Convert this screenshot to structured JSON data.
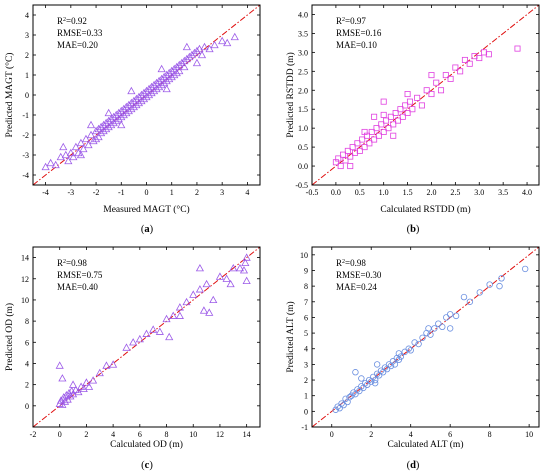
{
  "chart_data": [
    {
      "type": "scatter",
      "panel_label": "(a)",
      "xlabel": "Measured MAGT (°C)",
      "ylabel": "Predicted MAGT (°C)",
      "xlim": [
        -4.5,
        4.5
      ],
      "ylim": [
        -4.5,
        4.5
      ],
      "xticks": [
        -4,
        -3,
        -2,
        -1,
        0,
        1,
        2,
        3,
        4
      ],
      "yticks": [
        -4,
        -3,
        -2,
        -1,
        0,
        1,
        2,
        3,
        4
      ],
      "marker": "triangle",
      "color": "#9b59e8",
      "stats": [
        {
          "prefix": "R",
          "sup": "2",
          "text": "=0.92"
        },
        {
          "prefix": "",
          "sup": "",
          "text": "RMSE=0.33"
        },
        {
          "prefix": "",
          "sup": "",
          "text": "MAE=0.20"
        }
      ],
      "points": [
        [
          -4.0,
          -3.6
        ],
        [
          -3.8,
          -3.4
        ],
        [
          -3.6,
          -3.5
        ],
        [
          -3.4,
          -3.1
        ],
        [
          -3.2,
          -3.0
        ],
        [
          -3.1,
          -3.3
        ],
        [
          -3.0,
          -2.9
        ],
        [
          -2.9,
          -3.1
        ],
        [
          -2.8,
          -2.6
        ],
        [
          -2.7,
          -2.9
        ],
        [
          -2.6,
          -2.4
        ],
        [
          -2.5,
          -2.7
        ],
        [
          -2.4,
          -2.2
        ],
        [
          -2.3,
          -2.5
        ],
        [
          -2.2,
          -2.0
        ],
        [
          -2.1,
          -2.3
        ],
        [
          -2.0,
          -1.8
        ],
        [
          -2.0,
          -2.2
        ],
        [
          -1.9,
          -1.7
        ],
        [
          -1.9,
          -2.1
        ],
        [
          -1.8,
          -1.6
        ],
        [
          -1.8,
          -1.9
        ],
        [
          -1.7,
          -1.5
        ],
        [
          -1.7,
          -1.8
        ],
        [
          -1.6,
          -1.4
        ],
        [
          -1.6,
          -1.7
        ],
        [
          -1.5,
          -1.3
        ],
        [
          -1.5,
          -1.6
        ],
        [
          -1.4,
          -1.2
        ],
        [
          -1.4,
          -1.5
        ],
        [
          -1.3,
          -1.1
        ],
        [
          -1.3,
          -1.4
        ],
        [
          -1.2,
          -1.0
        ],
        [
          -1.2,
          -1.3
        ],
        [
          -1.1,
          -0.9
        ],
        [
          -1.1,
          -1.2
        ],
        [
          -1.0,
          -0.8
        ],
        [
          -1.0,
          -1.1
        ],
        [
          -0.9,
          -0.7
        ],
        [
          -0.9,
          -1.0
        ],
        [
          -0.8,
          -0.6
        ],
        [
          -0.8,
          -0.9
        ],
        [
          -0.7,
          -0.5
        ],
        [
          -0.7,
          -0.8
        ],
        [
          -0.6,
          -0.4
        ],
        [
          -0.6,
          -0.7
        ],
        [
          -0.5,
          -0.3
        ],
        [
          -0.5,
          -0.6
        ],
        [
          -0.4,
          -0.2
        ],
        [
          -0.4,
          -0.5
        ],
        [
          -0.3,
          -0.1
        ],
        [
          -0.3,
          -0.4
        ],
        [
          -0.2,
          0.0
        ],
        [
          -0.2,
          -0.3
        ],
        [
          -0.1,
          0.1
        ],
        [
          -0.1,
          -0.2
        ],
        [
          0.0,
          0.2
        ],
        [
          0.0,
          -0.1
        ],
        [
          0.1,
          0.3
        ],
        [
          0.1,
          0.0
        ],
        [
          0.2,
          0.4
        ],
        [
          0.2,
          0.1
        ],
        [
          0.3,
          0.5
        ],
        [
          0.3,
          0.2
        ],
        [
          0.4,
          0.6
        ],
        [
          0.4,
          0.3
        ],
        [
          0.5,
          0.7
        ],
        [
          0.5,
          0.4
        ],
        [
          0.6,
          0.8
        ],
        [
          0.6,
          0.5
        ],
        [
          0.7,
          0.9
        ],
        [
          0.7,
          0.6
        ],
        [
          0.8,
          1.0
        ],
        [
          0.8,
          0.7
        ],
        [
          0.9,
          1.1
        ],
        [
          0.9,
          0.8
        ],
        [
          1.0,
          1.2
        ],
        [
          1.0,
          0.9
        ],
        [
          1.1,
          1.3
        ],
        [
          1.1,
          1.0
        ],
        [
          1.2,
          1.4
        ],
        [
          1.2,
          1.1
        ],
        [
          1.3,
          1.5
        ],
        [
          1.3,
          1.2
        ],
        [
          1.4,
          1.6
        ],
        [
          1.5,
          1.7
        ],
        [
          1.5,
          1.4
        ],
        [
          1.6,
          1.8
        ],
        [
          1.7,
          1.9
        ],
        [
          1.8,
          2.0
        ],
        [
          1.9,
          2.1
        ],
        [
          2.0,
          2.2
        ],
        [
          2.1,
          2.3
        ],
        [
          2.2,
          2.0
        ],
        [
          2.3,
          2.4
        ],
        [
          2.5,
          2.3
        ],
        [
          2.7,
          2.5
        ],
        [
          3.0,
          2.7
        ],
        [
          3.2,
          2.6
        ],
        [
          3.5,
          2.9
        ],
        [
          -3.3,
          -2.6
        ],
        [
          -2.2,
          -1.5
        ],
        [
          -1.5,
          -0.9
        ],
        [
          -0.6,
          0.2
        ],
        [
          0.6,
          1.3
        ],
        [
          1.6,
          2.4
        ],
        [
          -2.6,
          -3.0
        ],
        [
          -1.0,
          -1.5
        ],
        [
          0.8,
          0.3
        ],
        [
          2.0,
          1.6
        ]
      ]
    },
    {
      "type": "scatter",
      "panel_label": "(b)",
      "xlabel": "Calculated RSTDD (m)",
      "ylabel": "Predicted RSTDD (m)",
      "xlim": [
        -0.5,
        4.25
      ],
      "ylim": [
        -0.5,
        4.25
      ],
      "xticks": [
        -0.5,
        0.0,
        0.5,
        1.0,
        1.5,
        2.0,
        2.5,
        3.0,
        3.5,
        4.0
      ],
      "yticks": [
        -0.5,
        0.0,
        0.5,
        1.0,
        1.5,
        2.0,
        2.5,
        3.0,
        3.5,
        4.0
      ],
      "marker": "square",
      "color": "#e040e0",
      "stats": [
        {
          "prefix": "R",
          "sup": "2",
          "text": "=0.97"
        },
        {
          "prefix": "",
          "sup": "",
          "text": "RMSE=0.16"
        },
        {
          "prefix": "",
          "sup": "",
          "text": "MAE=0.10"
        }
      ],
      "points": [
        [
          0.0,
          0.1
        ],
        [
          0.05,
          0.2
        ],
        [
          0.1,
          0.0
        ],
        [
          0.15,
          0.3
        ],
        [
          0.2,
          0.15
        ],
        [
          0.25,
          0.4
        ],
        [
          0.3,
          0.25
        ],
        [
          0.35,
          0.5
        ],
        [
          0.4,
          0.35
        ],
        [
          0.45,
          0.6
        ],
        [
          0.5,
          0.4
        ],
        [
          0.55,
          0.7
        ],
        [
          0.6,
          0.5
        ],
        [
          0.65,
          0.8
        ],
        [
          0.7,
          0.6
        ],
        [
          0.75,
          0.9
        ],
        [
          0.8,
          0.7
        ],
        [
          0.85,
          1.0
        ],
        [
          0.9,
          0.8
        ],
        [
          0.95,
          1.1
        ],
        [
          1.0,
          0.9
        ],
        [
          1.05,
          1.2
        ],
        [
          1.1,
          1.0
        ],
        [
          1.15,
          1.3
        ],
        [
          1.2,
          1.1
        ],
        [
          1.25,
          1.4
        ],
        [
          1.3,
          1.2
        ],
        [
          1.35,
          1.5
        ],
        [
          1.4,
          1.3
        ],
        [
          1.45,
          1.6
        ],
        [
          1.5,
          1.4
        ],
        [
          1.55,
          1.7
        ],
        [
          1.6,
          1.5
        ],
        [
          1.7,
          1.8
        ],
        [
          1.8,
          1.6
        ],
        [
          1.9,
          2.0
        ],
        [
          2.0,
          1.9
        ],
        [
          2.1,
          2.2
        ],
        [
          2.2,
          2.0
        ],
        [
          2.3,
          2.4
        ],
        [
          2.4,
          2.3
        ],
        [
          2.5,
          2.6
        ],
        [
          2.6,
          2.5
        ],
        [
          2.7,
          2.8
        ],
        [
          2.8,
          2.7
        ],
        [
          2.9,
          2.9
        ],
        [
          3.0,
          2.85
        ],
        [
          3.1,
          3.0
        ],
        [
          3.2,
          2.95
        ],
        [
          3.8,
          3.1
        ],
        [
          0.3,
          0.0
        ],
        [
          0.6,
          0.9
        ],
        [
          1.0,
          1.35
        ],
        [
          1.2,
          0.8
        ],
        [
          1.5,
          1.9
        ],
        [
          1.0,
          1.7
        ],
        [
          2.0,
          2.4
        ],
        [
          0.8,
          1.3
        ]
      ]
    },
    {
      "type": "scatter",
      "panel_label": "(c)",
      "xlabel": "Calculated OD (m)",
      "ylabel": "Predicted OD (m)",
      "xlim": [
        -2,
        15
      ],
      "ylim": [
        -2,
        15
      ],
      "xticks": [
        -2,
        0,
        2,
        4,
        6,
        8,
        10,
        12,
        14
      ],
      "yticks": [
        0,
        2,
        4,
        6,
        8,
        10,
        12,
        14
      ],
      "marker": "triangle",
      "color": "#9b59e8",
      "stats": [
        {
          "prefix": "R",
          "sup": "2",
          "text": "=0.98"
        },
        {
          "prefix": "",
          "sup": "",
          "text": "RMSE=0.75"
        },
        {
          "prefix": "",
          "sup": "",
          "text": "MAE=0.40"
        }
      ],
      "points": [
        [
          0.0,
          0.2
        ],
        [
          0.1,
          0.5
        ],
        [
          0.2,
          0.1
        ],
        [
          0.3,
          0.8
        ],
        [
          0.4,
          0.4
        ],
        [
          0.5,
          1.0
        ],
        [
          0.6,
          0.6
        ],
        [
          0.7,
          1.2
        ],
        [
          0.8,
          0.9
        ],
        [
          0.9,
          1.4
        ],
        [
          1.0,
          1.1
        ],
        [
          1.2,
          1.5
        ],
        [
          1.4,
          1.3
        ],
        [
          1.6,
          1.8
        ],
        [
          1.8,
          1.6
        ],
        [
          2.0,
          2.2
        ],
        [
          2.5,
          2.4
        ],
        [
          3.0,
          3.1
        ],
        [
          3.5,
          3.8
        ],
        [
          4.0,
          3.9
        ],
        [
          5.0,
          5.5
        ],
        [
          5.5,
          6.0
        ],
        [
          6.0,
          6.3
        ],
        [
          6.5,
          6.8
        ],
        [
          7.0,
          7.2
        ],
        [
          7.5,
          7.0
        ],
        [
          8.0,
          8.2
        ],
        [
          8.5,
          8.5
        ],
        [
          9.0,
          9.3
        ],
        [
          9.5,
          9.8
        ],
        [
          10.0,
          10.5
        ],
        [
          10.5,
          11.0
        ],
        [
          10.8,
          9.0
        ],
        [
          11.0,
          11.5
        ],
        [
          11.2,
          8.8
        ],
        [
          11.5,
          10.0
        ],
        [
          12.0,
          12.2
        ],
        [
          12.5,
          12.0
        ],
        [
          13.0,
          13.0
        ],
        [
          13.5,
          13.0
        ],
        [
          14.0,
          14.0
        ],
        [
          13.8,
          12.8
        ],
        [
          14.0,
          11.8
        ],
        [
          13.9,
          13.5
        ],
        [
          0.0,
          3.8
        ],
        [
          0.2,
          2.6
        ],
        [
          1.0,
          2.0
        ],
        [
          2.2,
          1.8
        ],
        [
          8.2,
          6.5
        ],
        [
          9.0,
          8.5
        ],
        [
          10.5,
          13.0
        ],
        [
          12.8,
          11.5
        ]
      ]
    },
    {
      "type": "scatter",
      "panel_label": "(d)",
      "xlabel": "Calculated ALT (m)",
      "ylabel": "Predicted ALT (m)",
      "xlim": [
        -1,
        10.5
      ],
      "ylim": [
        -1,
        10.5
      ],
      "xticks": [
        0,
        2,
        4,
        6,
        8,
        10
      ],
      "yticks": [
        -1,
        0,
        1,
        2,
        3,
        4,
        5,
        6,
        7,
        8,
        9,
        10
      ],
      "marker": "circle",
      "color": "#6a8fe0",
      "stats": [
        {
          "prefix": "R",
          "sup": "2",
          "text": "=0.98"
        },
        {
          "prefix": "",
          "sup": "",
          "text": "RMSE=0.30"
        },
        {
          "prefix": "",
          "sup": "",
          "text": "MAE=0.24"
        }
      ],
      "points": [
        [
          0.2,
          0.1
        ],
        [
          0.3,
          0.3
        ],
        [
          0.4,
          0.2
        ],
        [
          0.5,
          0.5
        ],
        [
          0.6,
          0.4
        ],
        [
          0.7,
          0.8
        ],
        [
          0.8,
          0.6
        ],
        [
          0.9,
          0.9
        ],
        [
          1.0,
          1.0
        ],
        [
          1.1,
          1.2
        ],
        [
          1.2,
          1.1
        ],
        [
          1.3,
          1.4
        ],
        [
          1.4,
          1.3
        ],
        [
          1.5,
          1.6
        ],
        [
          1.6,
          1.5
        ],
        [
          1.7,
          1.8
        ],
        [
          1.8,
          1.7
        ],
        [
          1.9,
          2.0
        ],
        [
          2.0,
          1.9
        ],
        [
          2.1,
          2.2
        ],
        [
          2.2,
          2.0
        ],
        [
          2.3,
          2.4
        ],
        [
          2.4,
          2.3
        ],
        [
          2.5,
          2.6
        ],
        [
          2.6,
          2.5
        ],
        [
          2.7,
          2.8
        ],
        [
          2.8,
          2.7
        ],
        [
          2.9,
          3.0
        ],
        [
          3.0,
          2.9
        ],
        [
          3.1,
          3.2
        ],
        [
          3.2,
          3.0
        ],
        [
          3.3,
          3.4
        ],
        [
          3.4,
          3.3
        ],
        [
          3.5,
          3.5
        ],
        [
          3.7,
          3.8
        ],
        [
          3.9,
          4.0
        ],
        [
          4.0,
          3.9
        ],
        [
          4.2,
          4.4
        ],
        [
          4.4,
          4.3
        ],
        [
          4.6,
          4.7
        ],
        [
          4.8,
          5.0
        ],
        [
          5.0,
          4.9
        ],
        [
          5.2,
          5.3
        ],
        [
          5.4,
          5.6
        ],
        [
          5.6,
          5.4
        ],
        [
          5.8,
          6.0
        ],
        [
          6.0,
          6.2
        ],
        [
          6.3,
          6.1
        ],
        [
          6.7,
          7.3
        ],
        [
          7.0,
          7.0
        ],
        [
          7.5,
          7.6
        ],
        [
          8.0,
          8.1
        ],
        [
          8.5,
          8.0
        ],
        [
          8.6,
          8.5
        ],
        [
          9.8,
          9.1
        ],
        [
          1.2,
          2.5
        ],
        [
          2.3,
          3.0
        ],
        [
          3.4,
          3.7
        ],
        [
          2.2,
          1.8
        ],
        [
          6.0,
          5.3
        ],
        [
          4.9,
          5.3
        ],
        [
          1.5,
          2.1
        ]
      ]
    }
  ]
}
